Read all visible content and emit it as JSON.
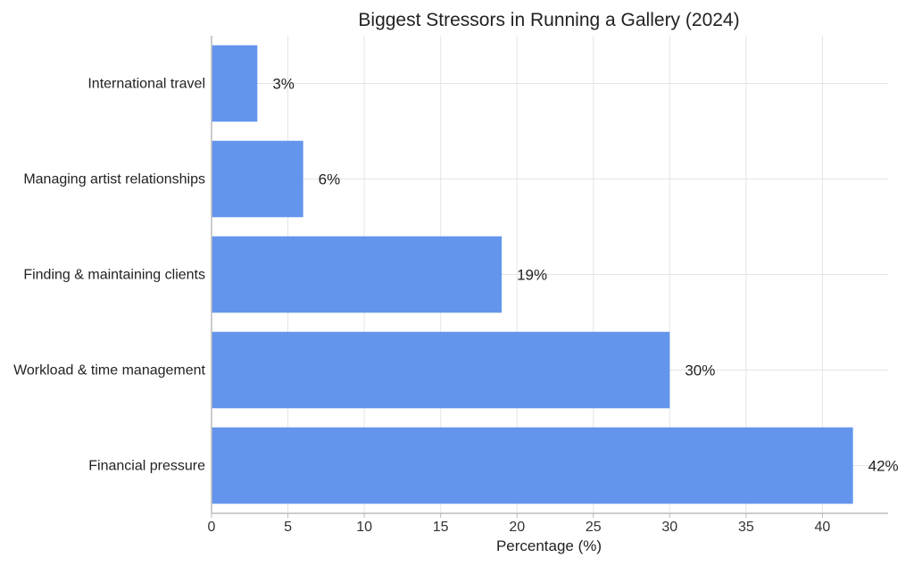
{
  "chart_data": {
    "type": "bar",
    "orientation": "horizontal",
    "title": "Biggest Stressors in Running a Gallery (2024)",
    "xlabel": "Percentage (%)",
    "ylabel": "",
    "categories": [
      "International travel",
      "Managing artist relationships",
      "Finding & maintaining clients",
      "Workload & time management",
      "Financial pressure"
    ],
    "values": [
      3,
      6,
      19,
      30,
      42
    ],
    "data_labels": [
      "3%",
      "6%",
      "19%",
      "30%",
      "42%"
    ],
    "xlim": [
      0,
      44.3
    ],
    "xticks": [
      0,
      5,
      10,
      15,
      20,
      25,
      30,
      35,
      40
    ],
    "xtick_labels": [
      "0",
      "5",
      "10",
      "15",
      "20",
      "25",
      "30",
      "35",
      "40"
    ],
    "grid": true,
    "bar_color": "#6495ED",
    "grid_color": "#e5e5e5",
    "axis_color": "#bbbbbb"
  }
}
